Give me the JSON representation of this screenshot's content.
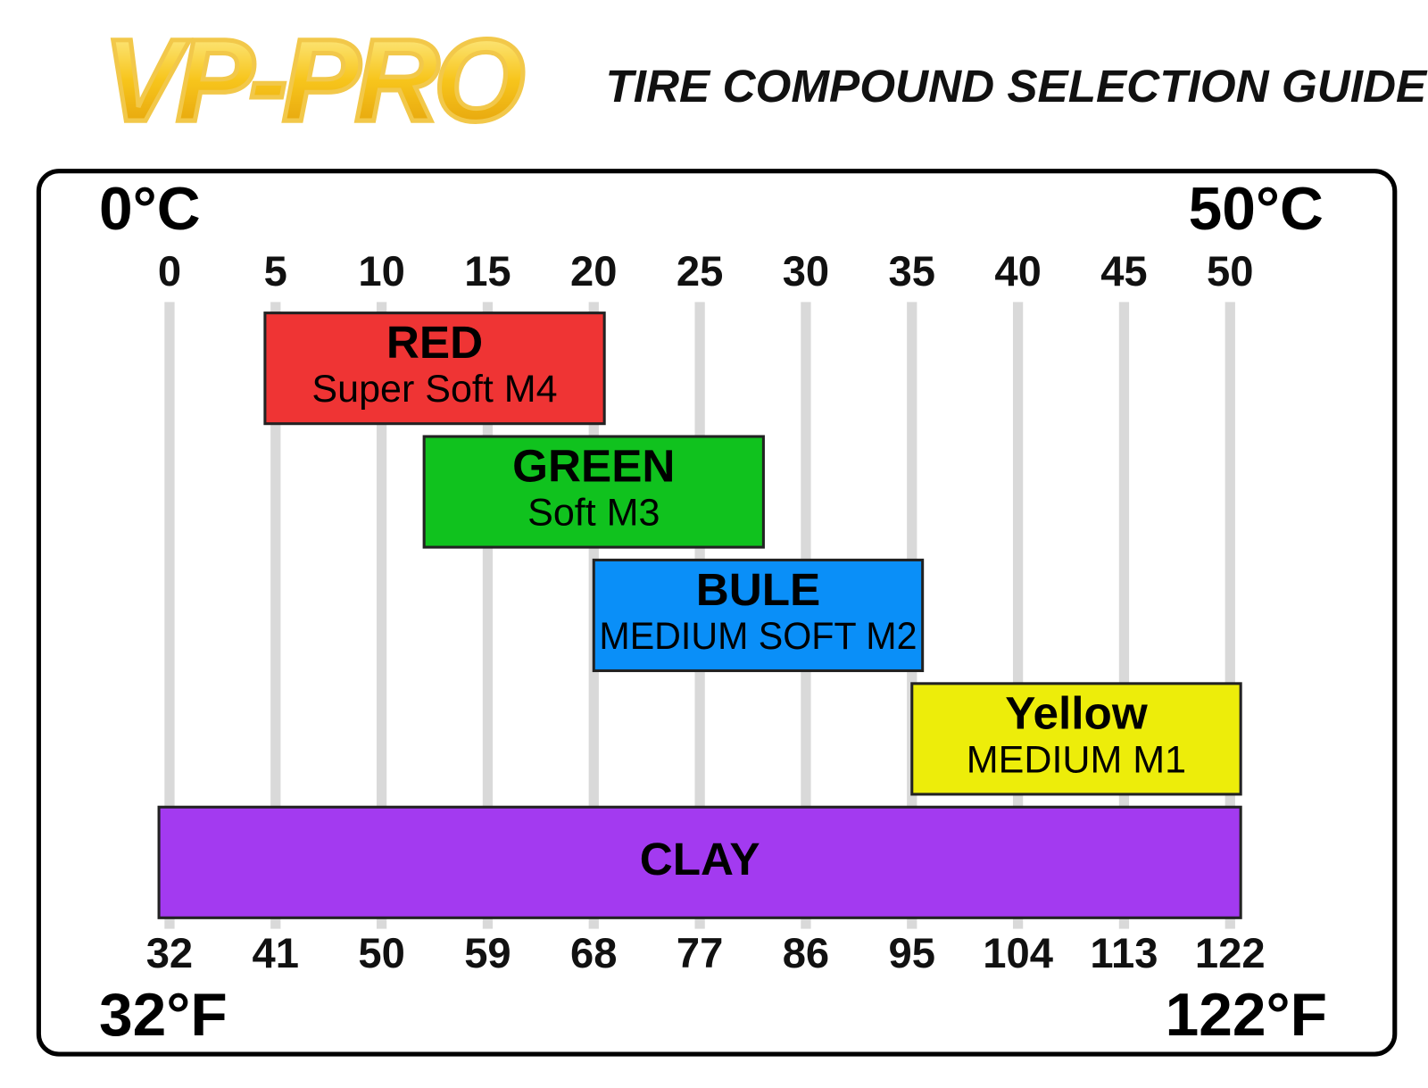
{
  "header": {
    "logo": "VP-PRO",
    "title": "TIRE COMPOUND SELECTION GUIDE"
  },
  "chart_data": {
    "type": "range",
    "xlim": [
      -2,
      52
    ],
    "xticks": [
      0,
      5,
      10,
      15,
      20,
      25,
      30,
      35,
      40,
      45,
      50
    ],
    "x2lim": [
      28.4,
      125.6
    ],
    "x2ticks": [
      32,
      41,
      50,
      59,
      68,
      77,
      86,
      95,
      104,
      113,
      122
    ],
    "xlabel_start": "0°C",
    "xlabel_end": "50°C",
    "x2label_start": "32°F",
    "x2label_end": "122°F",
    "grid": true,
    "bars": [
      {
        "name": "RED",
        "description": "Super Soft M4",
        "color": "#ef3434",
        "start": 4.5,
        "end": 20.5
      },
      {
        "name": "GREEN",
        "description": "Soft M3",
        "color": "#10c21e",
        "start": 12,
        "end": 28
      },
      {
        "name": "BULE",
        "description": "MEDIUM SOFT M2",
        "color": "#0a8ff8",
        "start": 20,
        "end": 35.5
      },
      {
        "name": "Yellow",
        "description": "MEDIUM M1",
        "color": "#eded0a",
        "start": 35,
        "end": 50.5
      },
      {
        "name": "CLAY",
        "color": "#a33af0",
        "start": -0.5,
        "end": 50.5
      }
    ]
  }
}
